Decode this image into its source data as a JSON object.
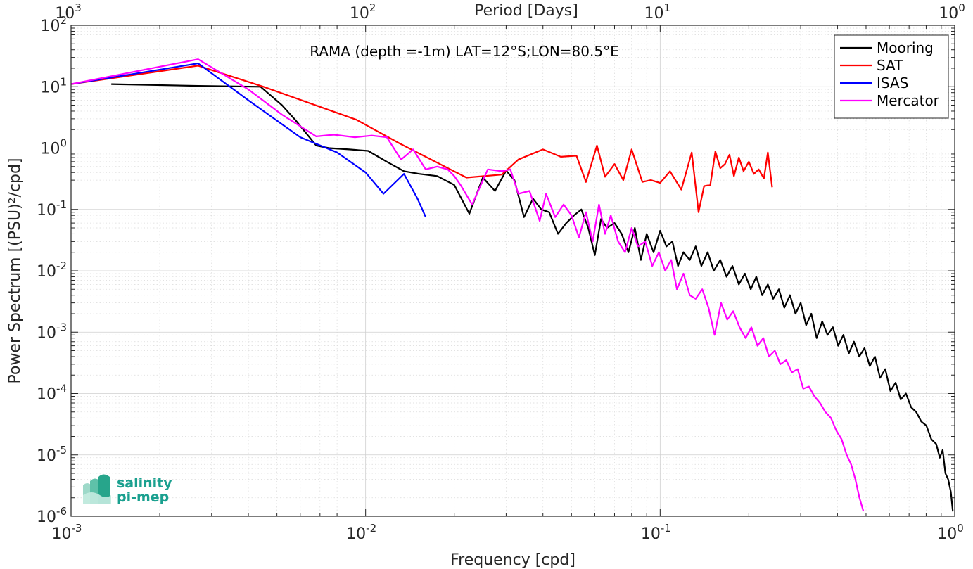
{
  "chart_data": {
    "type": "line",
    "title": "",
    "annotation": "RAMA (depth =-1m) LAT=12°S;LON=80.5°E",
    "xlabel": "Frequency [cpd]",
    "ylabel": "Power Spectrum [(PSU)²/cpd]",
    "top_xlabel": "Period [Days]",
    "xscale": "log",
    "yscale": "log",
    "xlim": [
      0.001,
      1
    ],
    "ylim": [
      1e-06,
      100
    ],
    "grid": true,
    "legend_position": "top-right",
    "x_ticks": [
      {
        "value": 0.001,
        "base": "10",
        "exp": "-3"
      },
      {
        "value": 0.01,
        "base": "10",
        "exp": "-2"
      },
      {
        "value": 0.1,
        "base": "10",
        "exp": "-1"
      },
      {
        "value": 1,
        "base": "10",
        "exp": "0"
      }
    ],
    "y_ticks": [
      {
        "value": 1e-06,
        "base": "10",
        "exp": "-6"
      },
      {
        "value": 1e-05,
        "base": "10",
        "exp": "-5"
      },
      {
        "value": 0.0001,
        "base": "10",
        "exp": "-4"
      },
      {
        "value": 0.001,
        "base": "10",
        "exp": "-3"
      },
      {
        "value": 0.01,
        "base": "10",
        "exp": "-2"
      },
      {
        "value": 0.1,
        "base": "10",
        "exp": "-1"
      },
      {
        "value": 1,
        "base": "10",
        "exp": "0"
      },
      {
        "value": 10,
        "base": "10",
        "exp": "1"
      },
      {
        "value": 100,
        "base": "10",
        "exp": "2"
      }
    ],
    "top_ticks": [
      {
        "period": 1000,
        "base": "10",
        "exp": "3"
      },
      {
        "period": 100,
        "base": "10",
        "exp": "2"
      },
      {
        "period": 10,
        "base": "10",
        "exp": "1"
      },
      {
        "period": 1,
        "base": "10",
        "exp": "0"
      }
    ],
    "series": [
      {
        "name": "Mooring",
        "color": "#000000",
        "x": [
          0.00137,
          0.0027,
          0.0044,
          0.0052,
          0.0058,
          0.0068,
          0.0075,
          0.0088,
          0.0102,
          0.0118,
          0.0135,
          0.0152,
          0.0175,
          0.02,
          0.0225,
          0.025,
          0.0275,
          0.03,
          0.032,
          0.0345,
          0.037,
          0.0395,
          0.042,
          0.045,
          0.048,
          0.051,
          0.054,
          0.057,
          0.06,
          0.063,
          0.066,
          0.07,
          0.074,
          0.078,
          0.082,
          0.086,
          0.09,
          0.095,
          0.1,
          0.105,
          0.11,
          0.115,
          0.12,
          0.126,
          0.132,
          0.138,
          0.145,
          0.152,
          0.16,
          0.168,
          0.176,
          0.185,
          0.194,
          0.203,
          0.212,
          0.222,
          0.232,
          0.242,
          0.253,
          0.264,
          0.276,
          0.288,
          0.3,
          0.313,
          0.326,
          0.34,
          0.355,
          0.37,
          0.386,
          0.402,
          0.419,
          0.437,
          0.455,
          0.474,
          0.494,
          0.515,
          0.536,
          0.558,
          0.581,
          0.605,
          0.63,
          0.656,
          0.683,
          0.711,
          0.74,
          0.77,
          0.801,
          0.833,
          0.866,
          0.89,
          0.91,
          0.93,
          0.95,
          0.97,
          0.985
        ],
        "y": [
          11,
          10.3,
          10,
          5,
          2.8,
          1.1,
          1.0,
          0.95,
          0.9,
          0.6,
          0.42,
          0.38,
          0.35,
          0.25,
          0.085,
          0.33,
          0.2,
          0.43,
          0.3,
          0.075,
          0.15,
          0.1,
          0.09,
          0.04,
          0.06,
          0.08,
          0.1,
          0.05,
          0.018,
          0.07,
          0.05,
          0.06,
          0.04,
          0.02,
          0.05,
          0.015,
          0.04,
          0.02,
          0.045,
          0.025,
          0.03,
          0.012,
          0.02,
          0.015,
          0.025,
          0.012,
          0.02,
          0.01,
          0.015,
          0.008,
          0.012,
          0.006,
          0.009,
          0.005,
          0.008,
          0.004,
          0.006,
          0.0035,
          0.005,
          0.0025,
          0.004,
          0.002,
          0.003,
          0.0013,
          0.002,
          0.0008,
          0.0015,
          0.0009,
          0.0012,
          0.0006,
          0.0009,
          0.00045,
          0.0007,
          0.0004,
          0.00055,
          0.00028,
          0.0004,
          0.00018,
          0.00025,
          0.00011,
          0.00015,
          8e-05,
          0.0001,
          6e-05,
          5e-05,
          3.5e-05,
          3e-05,
          1.8e-05,
          1.5e-05,
          9e-06,
          1.2e-05,
          5e-06,
          4e-06,
          2.5e-06,
          1.2e-06
        ]
      },
      {
        "name": "SAT",
        "color": "#ff0000",
        "x": [
          0.001,
          0.0027,
          0.0045,
          0.0093,
          0.013,
          0.022,
          0.029,
          0.033,
          0.04,
          0.046,
          0.052,
          0.056,
          0.061,
          0.065,
          0.07,
          0.075,
          0.08,
          0.087,
          0.093,
          0.1,
          0.108,
          0.118,
          0.128,
          0.135,
          0.141,
          0.148,
          0.154,
          0.16,
          0.166,
          0.172,
          0.178,
          0.185,
          0.192,
          0.2,
          0.208,
          0.216,
          0.225,
          0.232,
          0.24
        ],
        "y": [
          11,
          22,
          10,
          2.9,
          1.2,
          0.33,
          0.37,
          0.65,
          0.95,
          0.72,
          0.75,
          0.28,
          1.1,
          0.34,
          0.55,
          0.3,
          0.95,
          0.28,
          0.3,
          0.27,
          0.42,
          0.21,
          0.85,
          0.09,
          0.24,
          0.25,
          0.88,
          0.47,
          0.55,
          0.78,
          0.35,
          0.7,
          0.42,
          0.6,
          0.38,
          0.45,
          0.32,
          0.85,
          0.23
        ]
      },
      {
        "name": "ISAS",
        "color": "#0000ff",
        "x": [
          0.001,
          0.0027,
          0.004,
          0.006,
          0.008,
          0.01,
          0.0115,
          0.0135,
          0.015,
          0.016
        ],
        "y": [
          11,
          24,
          6,
          1.5,
          0.85,
          0.4,
          0.18,
          0.38,
          0.15,
          0.075
        ]
      },
      {
        "name": "Mercator",
        "color": "#ff00ff",
        "x": [
          0.001,
          0.0027,
          0.004,
          0.0052,
          0.0068,
          0.0078,
          0.0092,
          0.0105,
          0.0118,
          0.0132,
          0.0145,
          0.016,
          0.0175,
          0.019,
          0.02,
          0.021,
          0.023,
          0.026,
          0.029,
          0.031,
          0.033,
          0.036,
          0.039,
          0.041,
          0.044,
          0.047,
          0.05,
          0.053,
          0.056,
          0.059,
          0.062,
          0.065,
          0.068,
          0.072,
          0.076,
          0.08,
          0.084,
          0.089,
          0.094,
          0.099,
          0.104,
          0.109,
          0.114,
          0.12,
          0.126,
          0.132,
          0.139,
          0.146,
          0.153,
          0.161,
          0.169,
          0.177,
          0.186,
          0.195,
          0.204,
          0.214,
          0.224,
          0.234,
          0.245,
          0.256,
          0.268,
          0.28,
          0.293,
          0.306,
          0.32,
          0.334,
          0.349,
          0.364,
          0.38,
          0.396,
          0.413,
          0.43,
          0.445,
          0.46,
          0.475,
          0.49
        ],
        "y": [
          11,
          28,
          9,
          3.5,
          1.55,
          1.65,
          1.5,
          1.6,
          1.5,
          0.65,
          0.95,
          0.45,
          0.5,
          0.45,
          0.35,
          0.25,
          0.12,
          0.45,
          0.42,
          0.45,
          0.18,
          0.2,
          0.065,
          0.18,
          0.075,
          0.12,
          0.08,
          0.035,
          0.09,
          0.03,
          0.12,
          0.04,
          0.08,
          0.03,
          0.02,
          0.05,
          0.025,
          0.03,
          0.012,
          0.02,
          0.01,
          0.015,
          0.005,
          0.009,
          0.004,
          0.0035,
          0.005,
          0.0025,
          0.0009,
          0.003,
          0.0016,
          0.0022,
          0.0012,
          0.0008,
          0.0012,
          0.0006,
          0.0008,
          0.0004,
          0.0005,
          0.0003,
          0.00035,
          0.00022,
          0.00025,
          0.00012,
          0.00013,
          9e-05,
          7e-05,
          5e-05,
          4e-05,
          2.5e-05,
          1.8e-05,
          1e-05,
          7e-06,
          4e-06,
          2e-06,
          1.2e-06
        ]
      }
    ]
  },
  "logo": {
    "line1": "salinity",
    "line2": "pi-mep"
  }
}
